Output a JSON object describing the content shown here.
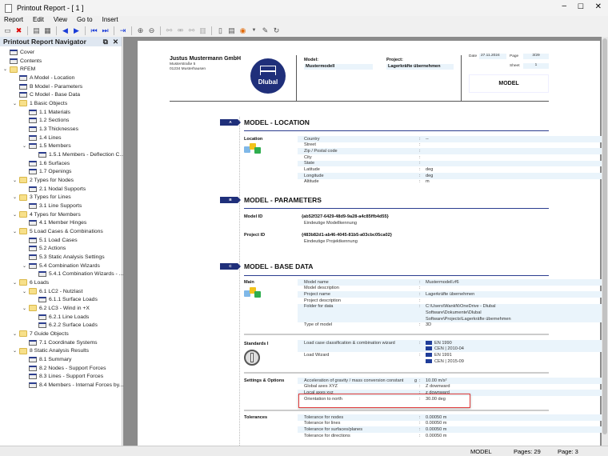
{
  "window": {
    "title": "Printout Report - [ 1 ]"
  },
  "menu": [
    "Report",
    "Edit",
    "View",
    "Go to",
    "Insert"
  ],
  "navigator": {
    "title": "Printout Report Navigator",
    "items": [
      {
        "label": "Cover",
        "level": 0,
        "icon": "page",
        "chev": false
      },
      {
        "label": "Contents",
        "level": 0,
        "icon": "page",
        "chev": false
      },
      {
        "label": "RFEM",
        "level": 0,
        "icon": "folder",
        "chev": true
      },
      {
        "label": "A Model - Location",
        "level": 1,
        "icon": "page",
        "chev": false
      },
      {
        "label": "B Model - Parameters",
        "level": 1,
        "icon": "page",
        "chev": false
      },
      {
        "label": "C Model - Base Data",
        "level": 1,
        "icon": "page",
        "chev": false
      },
      {
        "label": "1 Basic Objects",
        "level": 1,
        "icon": "folder",
        "chev": true
      },
      {
        "label": "1.1 Materials",
        "level": 2,
        "icon": "page",
        "chev": false
      },
      {
        "label": "1.2 Sections",
        "level": 2,
        "icon": "page",
        "chev": false
      },
      {
        "label": "1.3 Thicknesses",
        "level": 2,
        "icon": "page",
        "chev": false
      },
      {
        "label": "1.4 Lines",
        "level": 2,
        "icon": "page",
        "chev": false
      },
      {
        "label": "1.5 Members",
        "level": 2,
        "icon": "page",
        "chev": true
      },
      {
        "label": "1.5.1 Members - Deflection C...",
        "level": 3,
        "icon": "page",
        "chev": false
      },
      {
        "label": "1.6 Surfaces",
        "level": 2,
        "icon": "page",
        "chev": false
      },
      {
        "label": "1.7 Openings",
        "level": 2,
        "icon": "page",
        "chev": false
      },
      {
        "label": "2 Types for Nodes",
        "level": 1,
        "icon": "folder",
        "chev": true
      },
      {
        "label": "2.1 Nodal Supports",
        "level": 2,
        "icon": "page",
        "chev": false
      },
      {
        "label": "3 Types for Lines",
        "level": 1,
        "icon": "folder",
        "chev": true
      },
      {
        "label": "3.1 Line Supports",
        "level": 2,
        "icon": "page",
        "chev": false
      },
      {
        "label": "4 Types for Members",
        "level": 1,
        "icon": "folder",
        "chev": true
      },
      {
        "label": "4.1 Member Hinges",
        "level": 2,
        "icon": "page",
        "chev": false
      },
      {
        "label": "5 Load Cases & Combinations",
        "level": 1,
        "icon": "folder",
        "chev": true
      },
      {
        "label": "5.1 Load Cases",
        "level": 2,
        "icon": "page",
        "chev": false
      },
      {
        "label": "5.2 Actions",
        "level": 2,
        "icon": "page",
        "chev": false
      },
      {
        "label": "5.3 Static Analysis Settings",
        "level": 2,
        "icon": "page",
        "chev": false
      },
      {
        "label": "5.4 Combination Wizards",
        "level": 2,
        "icon": "page",
        "chev": true
      },
      {
        "label": "5.4.1 Combination Wizards - ...",
        "level": 3,
        "icon": "page",
        "chev": false
      },
      {
        "label": "6 Loads",
        "level": 1,
        "icon": "folder",
        "chev": true
      },
      {
        "label": "6.1 LC2 - Nutzlast",
        "level": 2,
        "icon": "folder",
        "chev": true
      },
      {
        "label": "6.1.1 Surface Loads",
        "level": 3,
        "icon": "page",
        "chev": false
      },
      {
        "label": "6.2 LC3 - Wind in +X",
        "level": 2,
        "icon": "folder",
        "chev": true
      },
      {
        "label": "6.2.1 Line Loads",
        "level": 3,
        "icon": "page",
        "chev": false
      },
      {
        "label": "6.2.2 Surface Loads",
        "level": 3,
        "icon": "page",
        "chev": false
      },
      {
        "label": "7 Guide Objects",
        "level": 1,
        "icon": "folder",
        "chev": true
      },
      {
        "label": "7.1 Coordinate Systems",
        "level": 2,
        "icon": "page",
        "chev": false
      },
      {
        "label": "8 Static Analysis Results",
        "level": 1,
        "icon": "folder",
        "chev": true
      },
      {
        "label": "8.1 Summary",
        "level": 2,
        "icon": "page",
        "chev": false
      },
      {
        "label": "8.2 Nodes - Support Forces",
        "level": 2,
        "icon": "page",
        "chev": false
      },
      {
        "label": "8.3 Lines - Support Forces",
        "level": 2,
        "icon": "page",
        "chev": false
      },
      {
        "label": "8.4 Members - Internal Forces by...",
        "level": 2,
        "icon": "page",
        "chev": false
      }
    ]
  },
  "header": {
    "company": "Justus Mustermann GmbH",
    "street": "Musterstraße 5",
    "city": "01234 Musterhausen",
    "logo_text": "Dlubal",
    "model_label": "Model:",
    "model_value": "Mustermodell",
    "project_label": "Project:",
    "project_value": "Lagerkräfte übernehmen",
    "date_label": "Date",
    "date_value": "27.11.2024",
    "page_label": "Page",
    "page_value": "3/29",
    "sheet_label": "Sheet",
    "sheet_value": "1",
    "chapter": "MODEL"
  },
  "sections": {
    "a": {
      "marker": "A",
      "title": "MODEL - LOCATION",
      "group": "Location",
      "rows": [
        {
          "l": "Country",
          "v": "--"
        },
        {
          "l": "Street",
          "v": ""
        },
        {
          "l": "Zip / Postal code",
          "v": ""
        },
        {
          "l": "City",
          "v": ""
        },
        {
          "l": "State",
          "v": ""
        },
        {
          "l": "Latitude",
          "v": "deg"
        },
        {
          "l": "Longitude",
          "v": "deg"
        },
        {
          "l": "Altitude",
          "v": "m"
        }
      ]
    },
    "b": {
      "marker": "B",
      "title": "MODEL - PARAMETERS",
      "model_id_label": "Model ID",
      "model_id": "{ab52f327-6429-48d9-9a28-a4c85ffb4d55}",
      "model_id_desc": "Eindeutige Modellkennung",
      "project_id_label": "Project ID",
      "project_id": "{483b82d1-ab46-4045-81b5-a03cbc05ca02}",
      "project_id_desc": "Eindeutige Projektkennung"
    },
    "c": {
      "marker": "C",
      "title": "MODEL - BASE DATA",
      "main_label": "Main",
      "main_rows": [
        {
          "l": "Model name",
          "v": "Mustermodell.rf6"
        },
        {
          "l": "Model description",
          "v": ""
        },
        {
          "l": "Project name",
          "v": "Lagerkräfte übernehmen"
        },
        {
          "l": "Project description",
          "v": ""
        },
        {
          "l": "Folder for data",
          "v": "C:\\Users\\WankN\\OneDrive - Dlubal",
          "v2": "Software\\Dokumente\\Dlubal",
          "v3": "Software\\Projects\\Lagerkräfte übernehmen"
        },
        {
          "l": "Type of model",
          "v": "3D"
        }
      ],
      "standards_label": "Standards I",
      "std_rows": [
        {
          "l": "Load case classification & combination wizard",
          "v": "EN 1990",
          "v2": "CEN | 2010-04"
        },
        {
          "l": "Load Wizard",
          "v": "EN 1991",
          "v2": "CEN | 2015-09"
        }
      ],
      "settings_label": "Settings & Options",
      "settings_rows": [
        {
          "l": "Acceleration of gravity / mass conversion constant",
          "s": "g",
          "v": "10.00 m/s²"
        },
        {
          "l": "Global axes XYZ",
          "v": "Z downward"
        },
        {
          "l": "Local axes xyz",
          "v": "z downward"
        },
        {
          "l": "Orientation to north",
          "v": "30.00 deg"
        }
      ],
      "tolerances_label": "Tolerances",
      "tol_rows": [
        {
          "l": "Tolerance for nodes",
          "v": "0.00050 m"
        },
        {
          "l": "Tolerance for lines",
          "v": "0.00050 m"
        },
        {
          "l": "Tolerance for surfaces/planes",
          "v": "0.00050 m"
        },
        {
          "l": "Tolerance for directions",
          "v": "0.00050 m"
        }
      ]
    }
  },
  "status": {
    "mode": "MODEL",
    "pages": "Pages: 29",
    "page": "Page: 3"
  },
  "colors": {
    "accent": "#1f2f7a",
    "highlight": "#e03c3c",
    "shade": "#eaf4fb"
  }
}
